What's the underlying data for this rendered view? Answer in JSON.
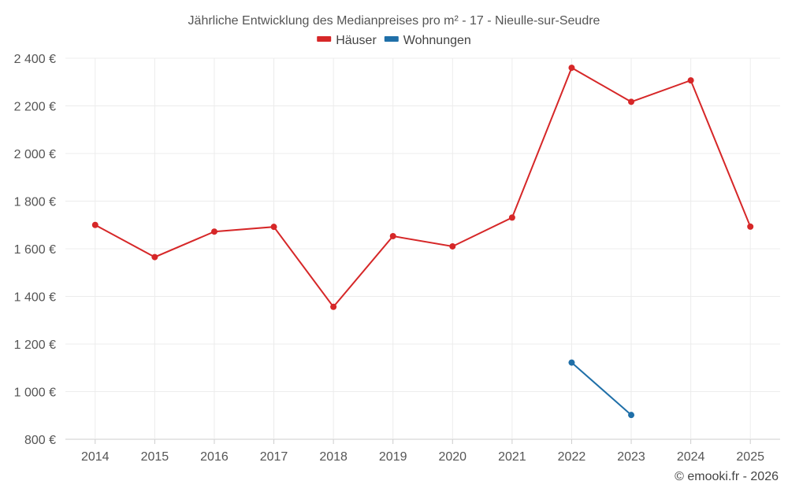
{
  "chart_data": {
    "type": "line",
    "title": "Jährliche Entwicklung des Medianpreises pro m² - 17 - Nieulle-sur-Seudre",
    "categories": [
      "2014",
      "2015",
      "2016",
      "2017",
      "2018",
      "2019",
      "2020",
      "2021",
      "2022",
      "2023",
      "2024",
      "2025"
    ],
    "ylim": [
      800,
      2400
    ],
    "yticks": [
      800,
      1000,
      1200,
      1400,
      1600,
      1800,
      2000,
      2200,
      2400
    ],
    "ytick_labels": [
      "800 €",
      "1 000 €",
      "1 200 €",
      "1 400 €",
      "1 600 €",
      "1 800 €",
      "2 000 €",
      "2 200 €",
      "2 400 €"
    ],
    "grid": true,
    "legend_position": "top-center",
    "series": [
      {
        "name": "Häuser",
        "color": "#d62728",
        "values": [
          1700,
          1565,
          1672,
          1692,
          1356,
          1653,
          1610,
          1731,
          2360,
          2217,
          2307,
          1693
        ]
      },
      {
        "name": "Wohnungen",
        "color": "#1f6fa8",
        "values": [
          null,
          null,
          null,
          null,
          null,
          null,
          null,
          null,
          1122,
          902,
          null,
          null
        ]
      }
    ]
  },
  "credit": "© emooki.fr - 2026"
}
